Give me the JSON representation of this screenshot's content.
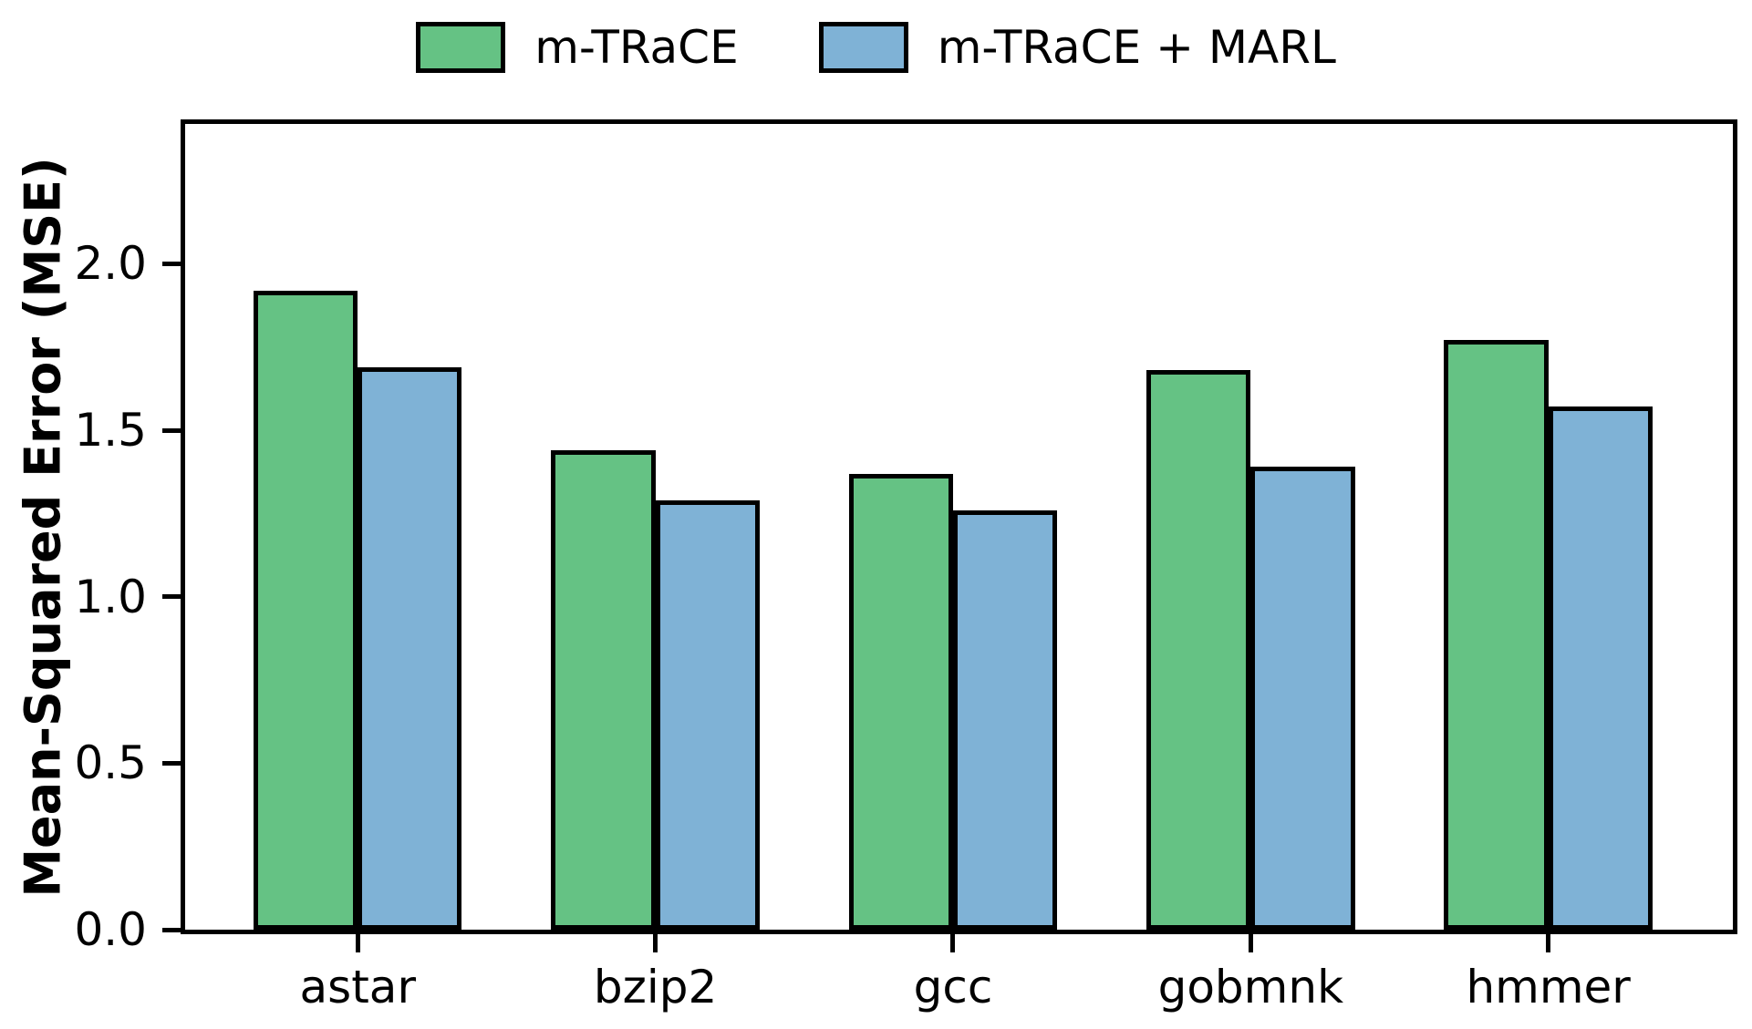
{
  "figure": {
    "background": "#ffffff"
  },
  "chart_data": {
    "type": "bar",
    "title": "",
    "categories": [
      "astar",
      "bzip2",
      "gcc",
      "gobmnk",
      "hmmer"
    ],
    "series": [
      {
        "name": "m-TRaCE",
        "color": "#65c284",
        "values": [
          1.92,
          1.44,
          1.37,
          1.68,
          1.77
        ]
      },
      {
        "name": "m-TRaCE + MARL",
        "color": "#7fb2d6",
        "values": [
          1.69,
          1.29,
          1.26,
          1.39,
          1.57
        ]
      }
    ],
    "xlabel": "",
    "ylabel": "Mean-Squared Error (MSE)",
    "ylim": [
      0,
      2.42
    ],
    "xlim": [
      -0.58,
      4.62
    ],
    "yticks": [
      0.0,
      0.5,
      1.0,
      1.5,
      2.0
    ],
    "ytick_labels": [
      "0.0",
      "0.5",
      "1.0",
      "1.5",
      "2.0"
    ],
    "bar_width": 0.35,
    "bar_edge_color": "#000000",
    "grid": false,
    "legend_position": "top-center"
  }
}
